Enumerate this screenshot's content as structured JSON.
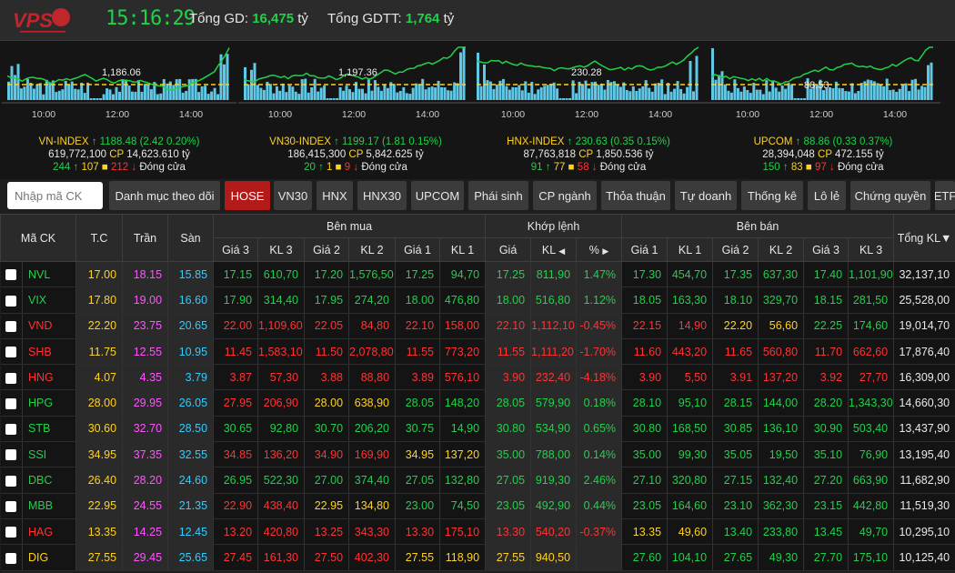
{
  "header": {
    "logo_text": "VPS",
    "clock": "15:16:29",
    "total_gd_label": "Tổng GD:",
    "total_gd_value": "16,475",
    "total_gd_unit": "tỷ",
    "total_gdtt_label": "Tổng GDTT:",
    "total_gdtt_value": "1,764",
    "total_gdtt_unit": "tỷ"
  },
  "indices": [
    {
      "name": "VN-INDEX",
      "arrow": "↑",
      "value": "1188.48",
      "change": "(2.42  0.20%)",
      "volume": "619,772,100",
      "cp_label": "CP",
      "cp_value": "14,623.610 tỷ",
      "up": "244",
      "up_arrow": "↑",
      "ref": "107",
      "down": "212",
      "down_arrow": "↓",
      "status": "Đóng cửa",
      "ref_value": "1,186.06",
      "times": [
        "10:00",
        "12:00",
        "14:00"
      ]
    },
    {
      "name": "VN30-INDEX",
      "arrow": "↑",
      "value": "1199.17",
      "change": "(1.81  0.15%)",
      "volume": "186,415,300",
      "cp_label": "CP",
      "cp_value": "5,842.625 tỷ",
      "up": "20",
      "up_arrow": "↑",
      "ref": "1",
      "down": "9",
      "down_arrow": "↓",
      "status": "Đóng cửa",
      "ref_value": "1,197.36",
      "times": [
        "10:00",
        "12:00",
        "14:00"
      ]
    },
    {
      "name": "HNX-INDEX",
      "arrow": "↑",
      "value": "230.63",
      "change": "(0.35  0.15%)",
      "volume": "87,763,818",
      "cp_label": "CP",
      "cp_value": "1,850.536 tỷ",
      "up": "91",
      "up_arrow": "↑",
      "ref": "77",
      "down": "58",
      "down_arrow": "↓",
      "status": "Đóng cửa",
      "ref_value": "230.28",
      "times": [
        "10:00",
        "12:00",
        "14:00"
      ]
    },
    {
      "name": "UPCOM",
      "arrow": "↑",
      "value": "88.86",
      "change": "(0.33  0.37%)",
      "volume": "28,394,048",
      "cp_label": "CP",
      "cp_value": "472.155 tỷ",
      "up": "150",
      "up_arrow": "↑",
      "ref": "83",
      "down": "97",
      "down_arrow": "↓",
      "status": "Đóng cửa",
      "ref_value": "88.53",
      "times": [
        "10:00",
        "12:00",
        "14:00"
      ]
    }
  ],
  "search": {
    "placeholder": "Nhập mã CK"
  },
  "tabs": [
    "Danh mục theo dõi",
    "HOSE",
    "VN30",
    "HNX",
    "HNX30",
    "UPCOM",
    "Phái sinh",
    "CP ngành",
    "Thỏa thuận",
    "Tự doanh",
    "Thống kê",
    "Lô lẻ",
    "Chứng quyền",
    "ETF"
  ],
  "active_tab": "HOSE",
  "table": {
    "headers": {
      "symbol": "Mã CK",
      "ref": "T.C",
      "ceil": "Trần",
      "floor": "Sàn",
      "buy": "Bên mua",
      "match": "Khớp lệnh",
      "sell": "Bên bán",
      "total": "Tổng KL",
      "total_sort": "▼",
      "buy_cols": [
        "Giá 3",
        "KL 3",
        "Giá 2",
        "KL 2",
        "Giá 1",
        "KL 1"
      ],
      "match_cols": [
        "Giá",
        "KL",
        "%"
      ],
      "match_left": "◀",
      "match_right": "▶",
      "sell_cols": [
        "Giá 1",
        "KL 1",
        "Giá 2",
        "KL 2",
        "Giá 3",
        "KL 3"
      ]
    },
    "rows": [
      {
        "sym": "NVL",
        "tc": "17.00",
        "tran": "18.15",
        "san": "15.85",
        "b3": "17.15",
        "bv3": "610,70",
        "b2": "17.20",
        "bv2": "1,576,50",
        "b1": "17.25",
        "bv1": "94,70",
        "mp": "17.25",
        "mv": "811,90",
        "pct": "1.47%",
        "s1": "17.30",
        "sv1": "454,70",
        "s2": "17.35",
        "sv2": "637,30",
        "s3": "17.40",
        "sv3": "1,101,90",
        "tot": "32,137,10"
      },
      {
        "sym": "VIX",
        "tc": "17.80",
        "tran": "19.00",
        "san": "16.60",
        "b3": "17.90",
        "bv3": "314,40",
        "b2": "17.95",
        "bv2": "274,20",
        "b1": "18.00",
        "bv1": "476,80",
        "mp": "18.00",
        "mv": "516,80",
        "pct": "1.12%",
        "s1": "18.05",
        "sv1": "163,30",
        "s2": "18.10",
        "sv2": "329,70",
        "s3": "18.15",
        "sv3": "281,50",
        "tot": "25,528,00"
      },
      {
        "sym": "VND",
        "tc": "22.20",
        "tran": "23.75",
        "san": "20.65",
        "b3": "22.00",
        "bv3": "1,109,60",
        "b2": "22.05",
        "bv2": "84,80",
        "b1": "22.10",
        "bv1": "158,00",
        "mp": "22.10",
        "mv": "1,112,10",
        "pct": "-0.45%",
        "s1": "22.15",
        "sv1": "14,90",
        "s2": "22.20",
        "sv2": "56,60",
        "s3": "22.25",
        "sv3": "174,60",
        "tot": "19,014,70"
      },
      {
        "sym": "SHB",
        "tc": "11.75",
        "tran": "12.55",
        "san": "10.95",
        "b3": "11.45",
        "bv3": "1,583,10",
        "b2": "11.50",
        "bv2": "2,078,80",
        "b1": "11.55",
        "bv1": "773,20",
        "mp": "11.55",
        "mv": "1,111,20",
        "pct": "-1.70%",
        "s1": "11.60",
        "sv1": "443,20",
        "s2": "11.65",
        "sv2": "560,80",
        "s3": "11.70",
        "sv3": "662,60",
        "tot": "17,876,40"
      },
      {
        "sym": "HNG",
        "tc": "4.07",
        "tran": "4.35",
        "san": "3.79",
        "b3": "3.87",
        "bv3": "57,30",
        "b2": "3.88",
        "bv2": "88,80",
        "b1": "3.89",
        "bv1": "576,10",
        "mp": "3.90",
        "mv": "232,40",
        "pct": "-4.18%",
        "s1": "3.90",
        "sv1": "5,50",
        "s2": "3.91",
        "sv2": "137,20",
        "s3": "3.92",
        "sv3": "27,70",
        "tot": "16,309,00"
      },
      {
        "sym": "HPG",
        "tc": "28.00",
        "tran": "29.95",
        "san": "26.05",
        "b3": "27.95",
        "bv3": "206,90",
        "b2": "28.00",
        "bv2": "638,90",
        "b1": "28.05",
        "bv1": "148,20",
        "mp": "28.05",
        "mv": "579,90",
        "pct": "0.18%",
        "s1": "28.10",
        "sv1": "95,10",
        "s2": "28.15",
        "sv2": "144,00",
        "s3": "28.20",
        "sv3": "1,343,30",
        "tot": "14,660,30"
      },
      {
        "sym": "STB",
        "tc": "30.60",
        "tran": "32.70",
        "san": "28.50",
        "b3": "30.65",
        "bv3": "92,80",
        "b2": "30.70",
        "bv2": "206,20",
        "b1": "30.75",
        "bv1": "14,90",
        "mp": "30.80",
        "mv": "534,90",
        "pct": "0.65%",
        "s1": "30.80",
        "sv1": "168,50",
        "s2": "30.85",
        "sv2": "136,10",
        "s3": "30.90",
        "sv3": "503,40",
        "tot": "13,437,90"
      },
      {
        "sym": "SSI",
        "tc": "34.95",
        "tran": "37.35",
        "san": "32.55",
        "b3": "34.85",
        "bv3": "136,20",
        "b2": "34.90",
        "bv2": "169,90",
        "b1": "34.95",
        "bv1": "137,20",
        "mp": "35.00",
        "mv": "788,00",
        "pct": "0.14%",
        "s1": "35.00",
        "sv1": "99,30",
        "s2": "35.05",
        "sv2": "19,50",
        "s3": "35.10",
        "sv3": "76,90",
        "tot": "13,195,40"
      },
      {
        "sym": "DBC",
        "tc": "26.40",
        "tran": "28.20",
        "san": "24.60",
        "b3": "26.95",
        "bv3": "522,30",
        "b2": "27.00",
        "bv2": "374,40",
        "b1": "27.05",
        "bv1": "132,80",
        "mp": "27.05",
        "mv": "919,30",
        "pct": "2.46%",
        "s1": "27.10",
        "sv1": "320,80",
        "s2": "27.15",
        "sv2": "132,40",
        "s3": "27.20",
        "sv3": "663,90",
        "tot": "11,682,90"
      },
      {
        "sym": "MBB",
        "tc": "22.95",
        "tran": "24.55",
        "san": "21.35",
        "b3": "22.90",
        "bv3": "438,40",
        "b2": "22.95",
        "bv2": "134,80",
        "b1": "23.00",
        "bv1": "74,50",
        "mp": "23.05",
        "mv": "492,90",
        "pct": "0.44%",
        "s1": "23.05",
        "sv1": "164,60",
        "s2": "23.10",
        "sv2": "362,30",
        "s3": "23.15",
        "sv3": "442,80",
        "tot": "11,519,30"
      },
      {
        "sym": "HAG",
        "tc": "13.35",
        "tran": "14.25",
        "san": "12.45",
        "b3": "13.20",
        "bv3": "420,80",
        "b2": "13.25",
        "bv2": "343,30",
        "b1": "13.30",
        "bv1": "175,10",
        "mp": "13.30",
        "mv": "540,20",
        "pct": "-0.37%",
        "s1": "13.35",
        "sv1": "49,60",
        "s2": "13.40",
        "sv2": "233,80",
        "s3": "13.45",
        "sv3": "49,70",
        "tot": "10,295,10"
      },
      {
        "sym": "DIG",
        "tc": "27.55",
        "tran": "29.45",
        "san": "25.65",
        "b3": "27.45",
        "bv3": "161,30",
        "b2": "27.50",
        "bv2": "402,30",
        "b1": "27.55",
        "bv1": "118,90",
        "mp": "27.55",
        "mv": "940,50",
        "pct": "",
        "s1": "27.60",
        "sv1": "104,10",
        "s2": "27.65",
        "sv2": "49,30",
        "s3": "27.70",
        "sv3": "175,10",
        "tot": "10,125,40"
      }
    ]
  },
  "colors": {
    "up": "#21d14a",
    "down": "#ff3333",
    "ref": "#ffd21e",
    "ceil": "#ff55ff",
    "floor": "#33ccff",
    "active_tab": "#b31b1b"
  }
}
